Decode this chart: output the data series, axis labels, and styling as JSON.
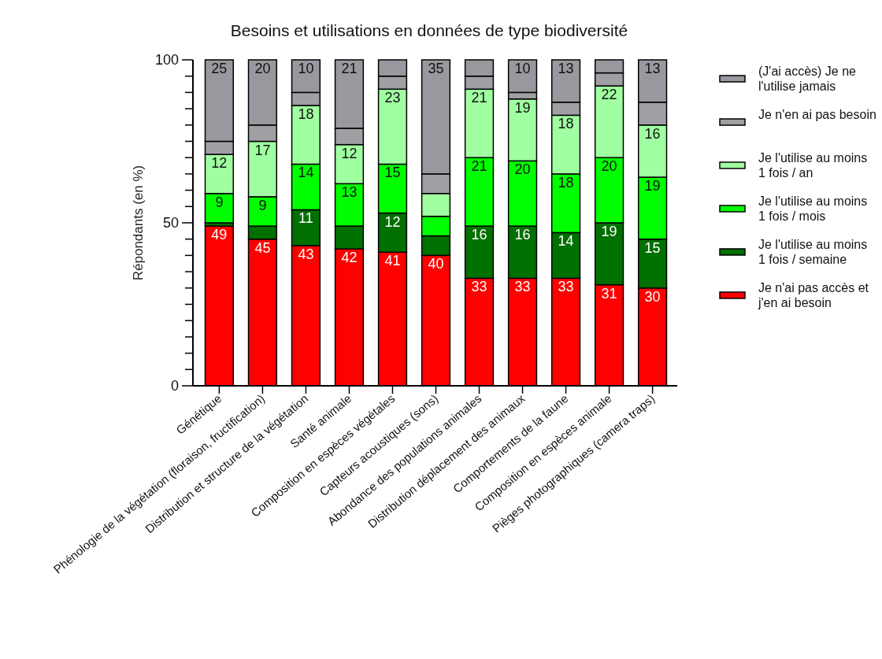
{
  "chart_data": {
    "type": "bar",
    "stacked": true,
    "title": "Besoins et utilisations en données de type biodiversité",
    "ylabel": "Répondants (en %)",
    "categories": [
      "Génétique",
      "Phénologie de la végétation (floraison, fructification)",
      "Distribution et structure de la végétation",
      "Santé animale",
      "Composition en espèces végétales",
      "Capteurs acoustiques (sons)",
      "Abondance des populations animales",
      "Distribution déplacement des animaux",
      "Comportements de la faune",
      "Composition en espèces animale",
      "Pièges photographiques (camera traps)"
    ],
    "ylim": [
      0,
      100
    ],
    "yticks": [
      0,
      {
        "value": 5,
        "label": null
      },
      {
        "value": 10,
        "label": null
      },
      {
        "value": 15,
        "label": null
      },
      {
        "value": 20,
        "label": null
      },
      {
        "value": 25,
        "label": null
      },
      {
        "value": 30,
        "label": null
      },
      {
        "value": 35,
        "label": null
      },
      {
        "value": 40,
        "label": null
      },
      {
        "value": 45,
        "label": null
      },
      50,
      {
        "value": 55,
        "label": null
      },
      {
        "value": 60,
        "label": null
      },
      {
        "value": 65,
        "label": null
      },
      {
        "value": 70,
        "label": null
      },
      {
        "value": 75,
        "label": null
      },
      {
        "value": 80,
        "label": null
      },
      {
        "value": 85,
        "label": null
      },
      {
        "value": 90,
        "label": null
      },
      {
        "value": 95,
        "label": null
      },
      100
    ],
    "legend": "right",
    "series": [
      {
        "name": "Je n'ai pas accès et j'en ai besoin",
        "color": "#ff0000",
        "values": [
          49,
          45,
          43,
          42,
          41,
          40,
          33,
          33,
          33,
          31,
          30
        ],
        "value_labels": [
          "49",
          "45",
          "43",
          "42",
          "41",
          "40",
          "33",
          "33",
          "33",
          "31",
          "30"
        ]
      },
      {
        "name": "Je l'utilise au moins 1 fois / semaine",
        "color": "#007000",
        "values": [
          1,
          4,
          11,
          7,
          12,
          6,
          16,
          16,
          14,
          19,
          15
        ],
        "value_labels": [
          null,
          null,
          "11",
          null,
          "12",
          null,
          "16",
          "16",
          "14",
          "19",
          "15"
        ]
      },
      {
        "name": "Je l'utilise au moins 1 fois / mois",
        "color": "#00ff00",
        "values": [
          9,
          9,
          14,
          13,
          15,
          6,
          21,
          20,
          18,
          20,
          19
        ],
        "value_labels": [
          "9",
          "9",
          "14",
          "13",
          "15",
          null,
          "21",
          "20",
          "18",
          "20",
          "19"
        ]
      },
      {
        "name": "Je l'utilise au moins 1 fois / an",
        "color": "#a0ffa0",
        "values": [
          12,
          17,
          18,
          12,
          23,
          7,
          21,
          19,
          18,
          22,
          16
        ],
        "value_labels": [
          "12",
          "17",
          "18",
          "12",
          "23",
          null,
          "21",
          "19",
          "18",
          "22",
          "16"
        ]
      },
      {
        "name": "Je n'en ai pas besoin",
        "color": "#a0a0a4",
        "values": [
          4,
          5,
          4,
          5,
          4,
          6,
          4,
          2,
          4,
          4,
          7
        ],
        "value_labels": [
          null,
          null,
          null,
          null,
          null,
          null,
          null,
          null,
          null,
          null,
          null
        ]
      },
      {
        "name": "(J'ai accès) Je ne l'utilise jamais",
        "color": "#98989e",
        "values": [
          25,
          20,
          10,
          21,
          5,
          35,
          5,
          10,
          13,
          4,
          13
        ],
        "value_labels": [
          "25",
          "20",
          "10",
          "21",
          null,
          "35",
          null,
          "10",
          "13",
          null,
          "13"
        ]
      }
    ]
  }
}
